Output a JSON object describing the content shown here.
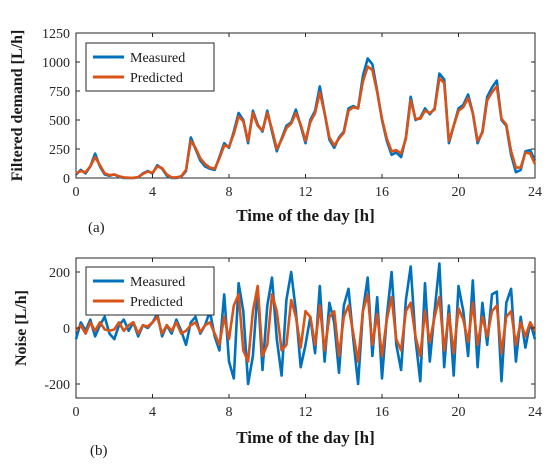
{
  "chart_data": [
    {
      "type": "line",
      "panel_label": "(a)",
      "xlabel": "Time of the day [h]",
      "ylabel": "Filtered demand [L/h]",
      "xlim": [
        0,
        24
      ],
      "ylim": [
        0,
        1250
      ],
      "xticks": [
        0,
        4,
        8,
        12,
        16,
        20,
        24
      ],
      "yticks": [
        0,
        250,
        500,
        750,
        1000,
        1250
      ],
      "grid": false,
      "legend_position": "top-left",
      "x": [
        0,
        0.25,
        0.5,
        0.75,
        1,
        1.25,
        1.5,
        1.75,
        2,
        2.25,
        2.5,
        2.75,
        3,
        3.25,
        3.5,
        3.75,
        4,
        4.25,
        4.5,
        4.75,
        5,
        5.25,
        5.5,
        5.75,
        6,
        6.25,
        6.5,
        6.75,
        7,
        7.25,
        7.5,
        7.75,
        8,
        8.25,
        8.5,
        8.75,
        9,
        9.25,
        9.5,
        9.75,
        10,
        10.25,
        10.5,
        10.75,
        11,
        11.25,
        11.5,
        11.75,
        12,
        12.25,
        12.5,
        12.75,
        13,
        13.25,
        13.5,
        13.75,
        14,
        14.25,
        14.5,
        14.75,
        15,
        15.25,
        15.5,
        15.75,
        16,
        16.25,
        16.5,
        16.75,
        17,
        17.25,
        17.5,
        17.75,
        18,
        18.25,
        18.5,
        18.75,
        19,
        19.25,
        19.5,
        19.75,
        20,
        20.25,
        20.5,
        20.75,
        21,
        21.25,
        21.5,
        21.75,
        22,
        22.25,
        22.5,
        22.75,
        23,
        23.25,
        23.5,
        23.75,
        24
      ],
      "series": [
        {
          "name": "Measured",
          "color": "#0072BD",
          "values": [
            30,
            70,
            40,
            100,
            210,
            100,
            30,
            20,
            30,
            10,
            0,
            0,
            0,
            5,
            40,
            60,
            40,
            110,
            80,
            20,
            0,
            0,
            10,
            60,
            350,
            250,
            150,
            100,
            80,
            70,
            180,
            300,
            260,
            400,
            560,
            500,
            300,
            580,
            460,
            400,
            580,
            400,
            230,
            340,
            450,
            480,
            590,
            450,
            300,
            500,
            580,
            790,
            560,
            330,
            260,
            350,
            400,
            600,
            620,
            600,
            880,
            1030,
            980,
            750,
            500,
            320,
            200,
            220,
            180,
            350,
            700,
            500,
            520,
            600,
            550,
            600,
            900,
            850,
            300,
            450,
            600,
            630,
            720,
            560,
            300,
            400,
            700,
            780,
            840,
            500,
            450,
            200,
            50,
            70,
            230,
            240,
            150
          ]
        },
        {
          "name": "Predicted",
          "color": "#D95319",
          "values": [
            40,
            60,
            50,
            100,
            180,
            110,
            40,
            25,
            30,
            15,
            5,
            3,
            2,
            8,
            35,
            55,
            45,
            100,
            85,
            30,
            5,
            5,
            15,
            70,
            320,
            260,
            170,
            120,
            90,
            80,
            170,
            280,
            270,
            380,
            530,
            490,
            320,
            560,
            450,
            410,
            560,
            420,
            250,
            330,
            430,
            470,
            560,
            460,
            320,
            480,
            560,
            740,
            560,
            350,
            280,
            340,
            390,
            580,
            610,
            600,
            830,
            960,
            930,
            740,
            510,
            340,
            230,
            240,
            210,
            340,
            670,
            510,
            510,
            580,
            560,
            590,
            860,
            820,
            320,
            450,
            580,
            610,
            690,
            560,
            320,
            390,
            670,
            740,
            790,
            510,
            460,
            230,
            90,
            90,
            220,
            210,
            120
          ]
        }
      ]
    },
    {
      "type": "line",
      "panel_label": "(b)",
      "xlabel": "Time of the day [h]",
      "ylabel": "Noise [L/h]",
      "xlim": [
        0,
        24
      ],
      "ylim": [
        -250,
        250
      ],
      "xticks": [
        0,
        4,
        8,
        12,
        16,
        20,
        24
      ],
      "yticks": [
        -200,
        0,
        200
      ],
      "grid": false,
      "legend_position": "top-left",
      "x": [
        0,
        0.25,
        0.5,
        0.75,
        1,
        1.25,
        1.5,
        1.75,
        2,
        2.25,
        2.5,
        2.75,
        3,
        3.25,
        3.5,
        3.75,
        4,
        4.25,
        4.5,
        4.75,
        5,
        5.25,
        5.5,
        5.75,
        6,
        6.25,
        6.5,
        6.75,
        7,
        7.25,
        7.5,
        7.75,
        8,
        8.25,
        8.5,
        8.75,
        9,
        9.25,
        9.5,
        9.75,
        10,
        10.25,
        10.5,
        10.75,
        11,
        11.25,
        11.5,
        11.75,
        12,
        12.25,
        12.5,
        12.75,
        13,
        13.25,
        13.5,
        13.75,
        14,
        14.25,
        14.5,
        14.75,
        15,
        15.25,
        15.5,
        15.75,
        16,
        16.25,
        16.5,
        16.75,
        17,
        17.25,
        17.5,
        17.75,
        18,
        18.25,
        18.5,
        18.75,
        19,
        19.25,
        19.5,
        19.75,
        20,
        20.25,
        20.5,
        20.75,
        21,
        21.25,
        21.5,
        21.75,
        22,
        22.25,
        22.5,
        22.75,
        23,
        23.25,
        23.5,
        23.75,
        24
      ],
      "series": [
        {
          "name": "Measured",
          "color": "#0072BD",
          "values": [
            -40,
            20,
            -10,
            30,
            -30,
            10,
            40,
            -20,
            -40,
            10,
            30,
            -10,
            20,
            -30,
            10,
            0,
            20,
            50,
            -30,
            10,
            -20,
            30,
            -10,
            -60,
            20,
            40,
            -20,
            10,
            60,
            -30,
            -80,
            120,
            -120,
            -180,
            160,
            60,
            -200,
            -100,
            140,
            -150,
            80,
            180,
            -40,
            -170,
            100,
            200,
            60,
            -140,
            -60,
            40,
            -90,
            150,
            -120,
            90,
            20,
            -160,
            80,
            140,
            -40,
            -200,
            60,
            180,
            -100,
            110,
            -180,
            40,
            200,
            -60,
            -150,
            100,
            220,
            -40,
            -190,
            160,
            -120,
            60,
            230,
            -140,
            80,
            -170,
            150,
            60,
            -100,
            170,
            -140,
            90,
            -60,
            120,
            130,
            -190,
            90,
            140,
            -120,
            40,
            -70,
            20,
            -40
          ]
        },
        {
          "name": "Predicted",
          "color": "#D95319",
          "values": [
            -10,
            10,
            -20,
            20,
            -10,
            20,
            -5,
            -10,
            -5,
            20,
            -10,
            10,
            20,
            -20,
            10,
            5,
            20,
            40,
            -20,
            10,
            -10,
            20,
            -20,
            -10,
            10,
            20,
            -15,
            10,
            20,
            -20,
            -60,
            40,
            -40,
            80,
            120,
            -80,
            -120,
            60,
            150,
            -100,
            -60,
            120,
            60,
            -80,
            -60,
            100,
            40,
            -70,
            60,
            40,
            -60,
            80,
            -80,
            40,
            60,
            -100,
            40,
            80,
            -20,
            -120,
            60,
            120,
            -60,
            50,
            -100,
            30,
            110,
            -40,
            -80,
            60,
            90,
            -30,
            -100,
            60,
            -50,
            40,
            110,
            -80,
            50,
            -90,
            70,
            30,
            -50,
            90,
            -60,
            40,
            -30,
            60,
            80,
            -90,
            40,
            60,
            -60,
            20,
            -30,
            20,
            -10
          ]
        }
      ]
    }
  ]
}
